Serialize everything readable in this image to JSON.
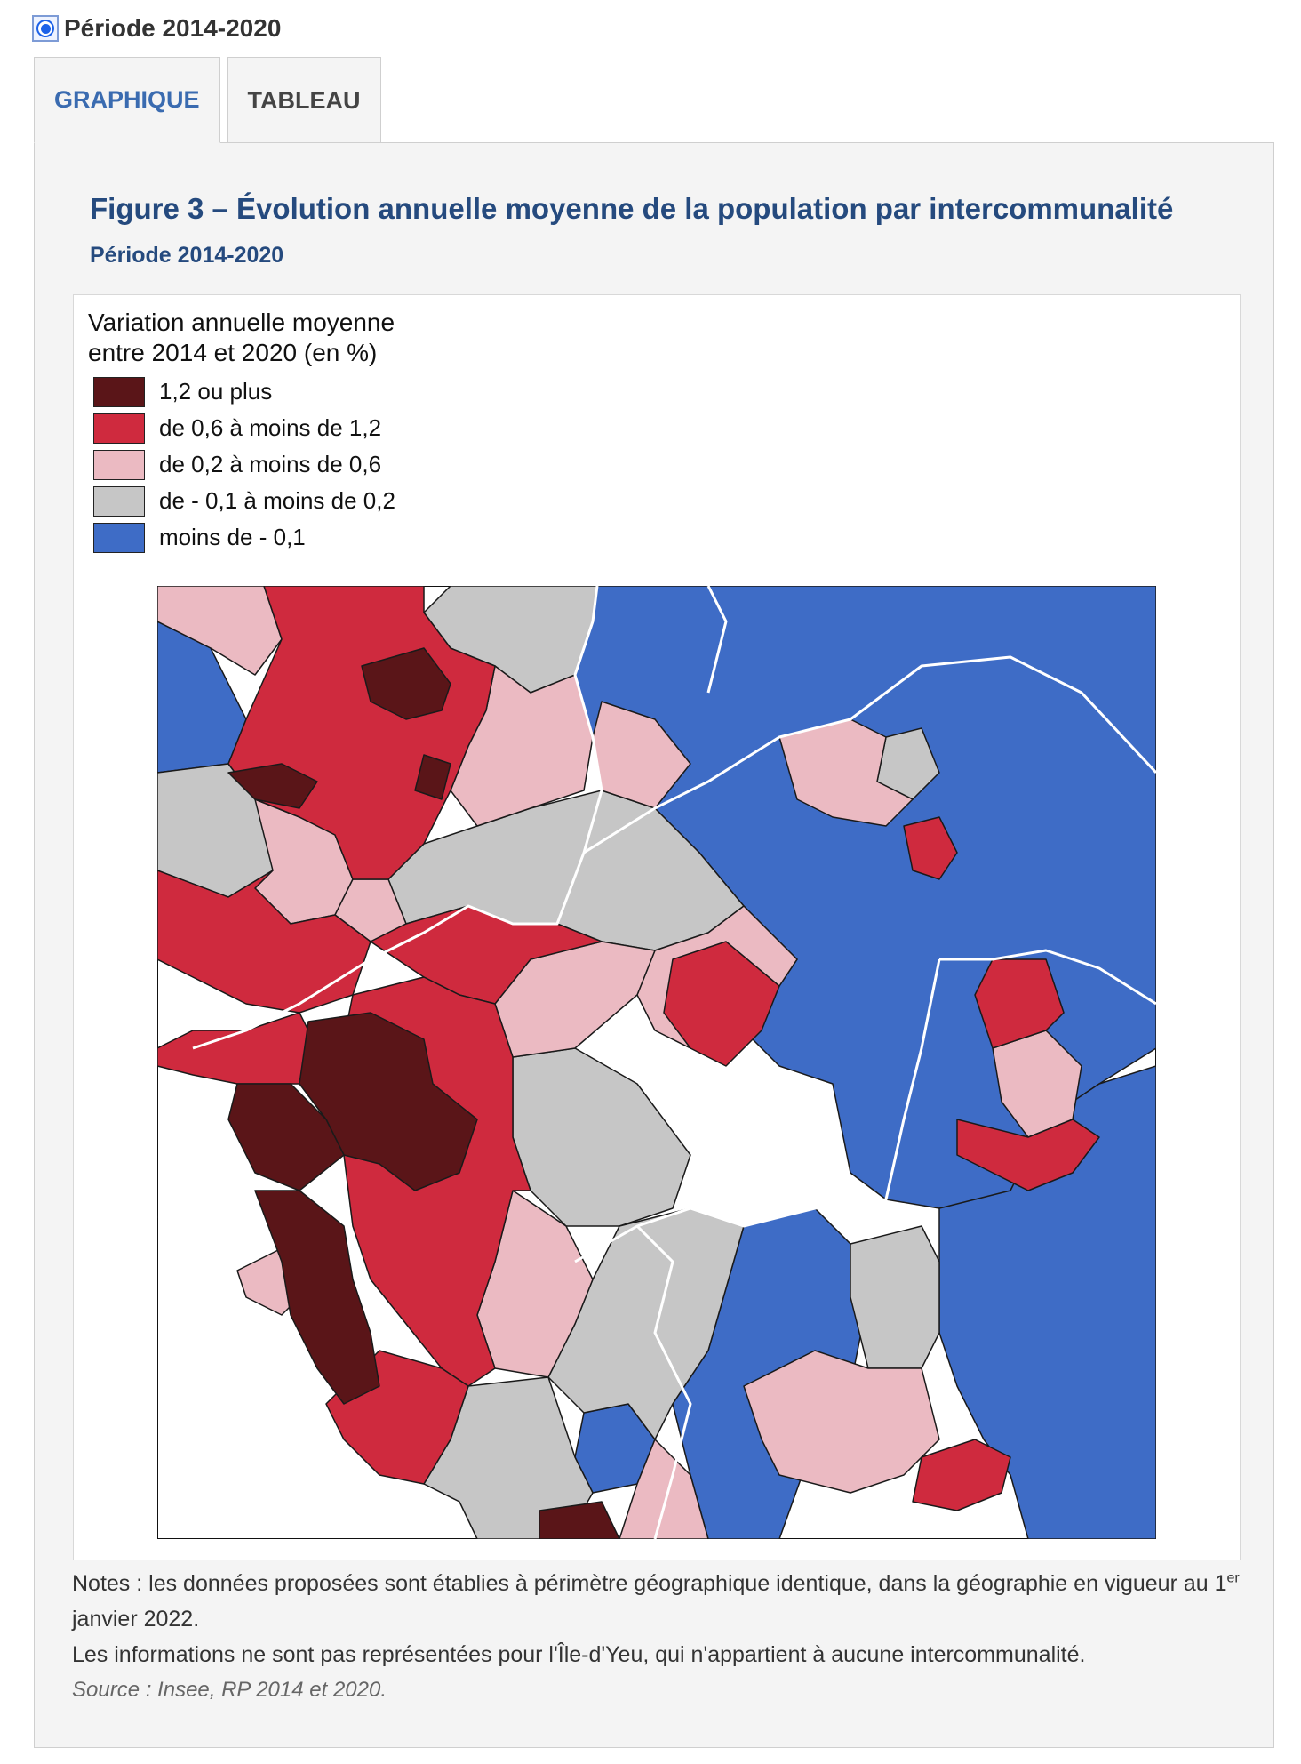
{
  "period_selector": {
    "label": "Période 2014-2020",
    "selected": true
  },
  "tabs": [
    {
      "label": "GRAPHIQUE",
      "active": true
    },
    {
      "label": "TABLEAU",
      "active": false
    }
  ],
  "figure": {
    "title": "Figure 3 – Évolution annuelle moyenne de la population par intercommunalité",
    "subtitle": "Période 2014-2020"
  },
  "legend": {
    "title_line1": "Variation annuelle moyenne",
    "title_line2": "entre 2014 et 2020 (en %)",
    "items": [
      {
        "label": "1,2 ou plus",
        "color": "#5a1518"
      },
      {
        "label": "de 0,6 à moins de 1,2",
        "color": "#cf2a3e"
      },
      {
        "label": "de 0,2 à moins de 0,6",
        "color": "#ebbac2"
      },
      {
        "label": "de - 0,1 à moins de 0,2",
        "color": "#c6c6c6"
      },
      {
        "label": "moins de - 0,1",
        "color": "#3e6cc6"
      }
    ]
  },
  "notes": {
    "line1_before_sup": "Notes : les données proposées sont établies à périmètre géographique identique, dans la géographie en vigueur au 1",
    "line1_sup": "er",
    "line1_after_sup": " janvier 2022.",
    "line2": "Les informations ne sont pas représentées pour l'Île-d'Yeu, qui n'appartient à aucune intercommunalité.",
    "source": "Source : Insee, RP 2014 et 2020."
  }
}
